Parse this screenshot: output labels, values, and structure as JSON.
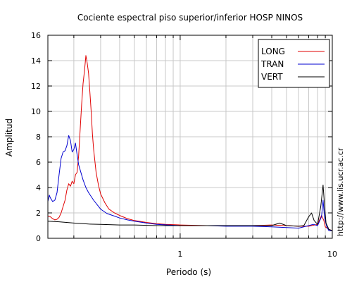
{
  "chart_data": {
    "type": "line",
    "title": "Cociente espectral piso superior/inferior  HOSP NINOS",
    "xlabel": "Periodo (s)",
    "ylabel": "Amplitud",
    "x_scale": "log",
    "xlim": [
      0.135,
      10
    ],
    "ylim": [
      0,
      16
    ],
    "grid": true,
    "legend_position": "top-right",
    "watermark": "http://www.lis.ucr.ac.cr",
    "x_ticks": [
      {
        "value": 1,
        "label": "1"
      },
      {
        "value": 10,
        "label": "10"
      }
    ],
    "y_ticks": [
      0,
      2,
      4,
      6,
      8,
      10,
      12,
      14,
      16
    ],
    "series": [
      {
        "name": "LONG",
        "color": "#e00000",
        "points": [
          [
            0.135,
            1.75
          ],
          [
            0.14,
            1.7
          ],
          [
            0.145,
            1.55
          ],
          [
            0.15,
            1.45
          ],
          [
            0.155,
            1.5
          ],
          [
            0.16,
            1.65
          ],
          [
            0.165,
            2.0
          ],
          [
            0.17,
            2.5
          ],
          [
            0.175,
            3.0
          ],
          [
            0.18,
            3.8
          ],
          [
            0.185,
            4.3
          ],
          [
            0.19,
            4.1
          ],
          [
            0.195,
            4.5
          ],
          [
            0.2,
            4.3
          ],
          [
            0.205,
            5.0
          ],
          [
            0.21,
            5.2
          ],
          [
            0.215,
            6.5
          ],
          [
            0.22,
            8.5
          ],
          [
            0.225,
            10.5
          ],
          [
            0.23,
            12.2
          ],
          [
            0.235,
            13.2
          ],
          [
            0.24,
            14.4
          ],
          [
            0.245,
            13.8
          ],
          [
            0.25,
            13.0
          ],
          [
            0.255,
            11.5
          ],
          [
            0.26,
            10.0
          ],
          [
            0.265,
            8.2
          ],
          [
            0.27,
            7.0
          ],
          [
            0.28,
            5.2
          ],
          [
            0.29,
            4.2
          ],
          [
            0.3,
            3.5
          ],
          [
            0.32,
            2.8
          ],
          [
            0.34,
            2.3
          ],
          [
            0.37,
            2.0
          ],
          [
            0.4,
            1.8
          ],
          [
            0.45,
            1.55
          ],
          [
            0.5,
            1.4
          ],
          [
            0.6,
            1.25
          ],
          [
            0.7,
            1.15
          ],
          [
            0.8,
            1.1
          ],
          [
            1.0,
            1.05
          ],
          [
            1.5,
            1.0
          ],
          [
            2.0,
            1.0
          ],
          [
            3.0,
            1.0
          ],
          [
            4.0,
            1.05
          ],
          [
            5.0,
            1.0
          ],
          [
            6.0,
            0.95
          ],
          [
            7.0,
            0.95
          ],
          [
            8.0,
            1.1
          ],
          [
            8.5,
            1.8
          ],
          [
            8.8,
            1.4
          ],
          [
            9.0,
            0.9
          ],
          [
            9.5,
            0.7
          ],
          [
            10.0,
            0.6
          ]
        ]
      },
      {
        "name": "TRAN",
        "color": "#0000d0",
        "points": [
          [
            0.135,
            2.9
          ],
          [
            0.138,
            3.4
          ],
          [
            0.14,
            3.2
          ],
          [
            0.145,
            2.9
          ],
          [
            0.15,
            3.0
          ],
          [
            0.155,
            3.6
          ],
          [
            0.16,
            5.0
          ],
          [
            0.165,
            6.3
          ],
          [
            0.17,
            6.8
          ],
          [
            0.175,
            6.9
          ],
          [
            0.18,
            7.3
          ],
          [
            0.185,
            8.1
          ],
          [
            0.19,
            7.7
          ],
          [
            0.195,
            6.8
          ],
          [
            0.2,
            7.0
          ],
          [
            0.205,
            7.5
          ],
          [
            0.21,
            6.6
          ],
          [
            0.215,
            5.8
          ],
          [
            0.22,
            5.4
          ],
          [
            0.23,
            4.6
          ],
          [
            0.24,
            4.0
          ],
          [
            0.25,
            3.6
          ],
          [
            0.27,
            3.0
          ],
          [
            0.3,
            2.3
          ],
          [
            0.33,
            1.95
          ],
          [
            0.37,
            1.75
          ],
          [
            0.4,
            1.6
          ],
          [
            0.45,
            1.45
          ],
          [
            0.5,
            1.35
          ],
          [
            0.6,
            1.2
          ],
          [
            0.7,
            1.1
          ],
          [
            1.0,
            1.0
          ],
          [
            1.5,
            1.0
          ],
          [
            2.0,
            0.95
          ],
          [
            3.0,
            0.95
          ],
          [
            4.0,
            0.9
          ],
          [
            5.0,
            0.85
          ],
          [
            6.0,
            0.8
          ],
          [
            7.0,
            1.0
          ],
          [
            7.5,
            1.1
          ],
          [
            8.0,
            1.0
          ],
          [
            8.5,
            1.7
          ],
          [
            8.7,
            3.0
          ],
          [
            8.9,
            1.6
          ],
          [
            9.2,
            0.9
          ],
          [
            9.5,
            0.6
          ],
          [
            10.0,
            0.6
          ]
        ]
      },
      {
        "name": "VERT",
        "color": "#000000",
        "points": [
          [
            0.135,
            1.35
          ],
          [
            0.16,
            1.3
          ],
          [
            0.2,
            1.2
          ],
          [
            0.25,
            1.12
          ],
          [
            0.3,
            1.1
          ],
          [
            0.4,
            1.05
          ],
          [
            0.5,
            1.05
          ],
          [
            0.7,
            1.0
          ],
          [
            1.0,
            1.0
          ],
          [
            1.5,
            1.0
          ],
          [
            2.0,
            1.0
          ],
          [
            3.0,
            1.0
          ],
          [
            4.0,
            1.0
          ],
          [
            4.5,
            1.2
          ],
          [
            5.0,
            1.0
          ],
          [
            6.0,
            0.95
          ],
          [
            6.5,
            1.0
          ],
          [
            7.0,
            1.7
          ],
          [
            7.3,
            2.0
          ],
          [
            7.6,
            1.4
          ],
          [
            8.0,
            1.1
          ],
          [
            8.4,
            2.5
          ],
          [
            8.7,
            4.2
          ],
          [
            8.9,
            2.5
          ],
          [
            9.1,
            1.2
          ],
          [
            9.5,
            0.7
          ],
          [
            10.0,
            0.6
          ]
        ]
      }
    ]
  }
}
